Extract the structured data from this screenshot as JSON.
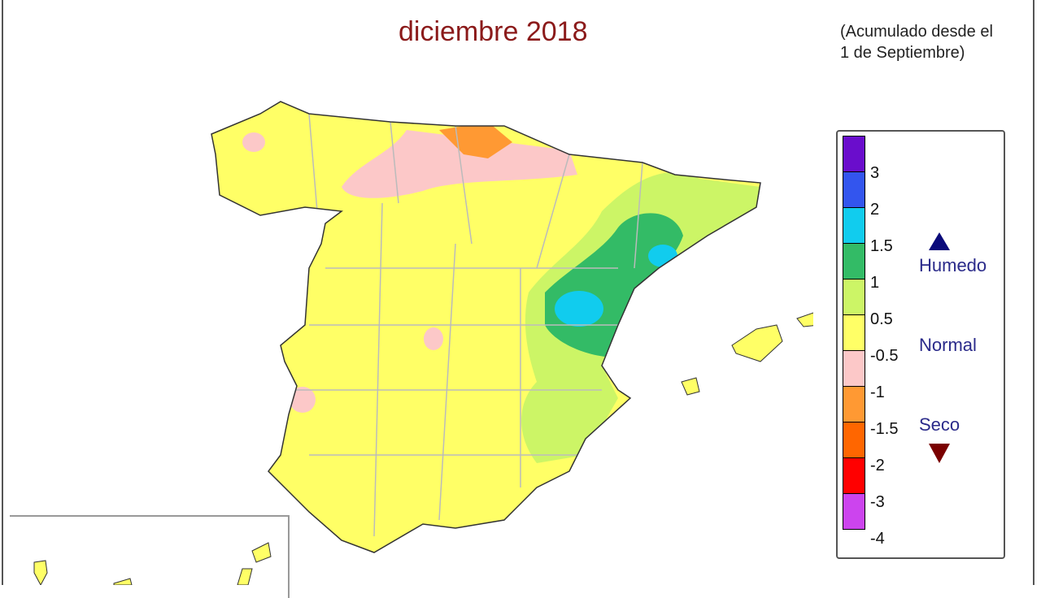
{
  "title": "diciembre 2018",
  "subtitle_line1": "(Acumulado desde el",
  "subtitle_line2": "1 de Septiembre)",
  "legend": {
    "colors": [
      "#6a0dcc",
      "#3355ee",
      "#11ccee",
      "#33bb66",
      "#ccf566",
      "#ffff66",
      "#fcc8c8",
      "#ff9933",
      "#ff6600",
      "#ff0000",
      "#cc44ee"
    ],
    "ticks": [
      "3",
      "2",
      "1.5",
      "1",
      "0.5",
      "-0.5",
      "-1",
      "-1.5",
      "-2",
      "-3",
      "-4"
    ],
    "wet_label": "Humedo",
    "normal_label": "Normal",
    "dry_label": "Seco",
    "wet_color": "#0a0a7a",
    "dry_color": "#7a0000"
  }
}
